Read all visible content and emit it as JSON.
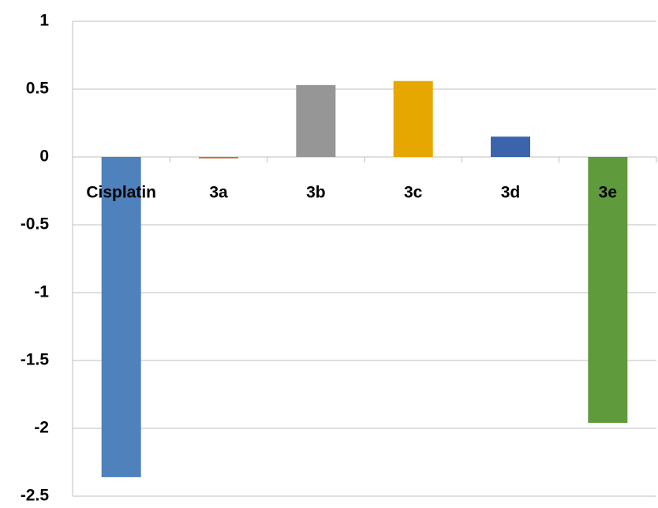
{
  "chart_data": {
    "type": "bar",
    "categories": [
      "Cisplatin",
      "3a",
      "3b",
      "3c",
      "3d",
      "3e"
    ],
    "values": [
      -2.36,
      -0.01,
      0.53,
      0.56,
      0.15,
      -1.96
    ],
    "colors": [
      "#4f81bd",
      "#d2691e",
      "#969696",
      "#e6a800",
      "#3b64ad",
      "#5f9a3c"
    ],
    "ylim": [
      -2.5,
      1
    ],
    "yticks": [
      -2.5,
      -2,
      -1.5,
      -1,
      -0.5,
      0,
      0.5,
      1
    ],
    "grid": true
  }
}
